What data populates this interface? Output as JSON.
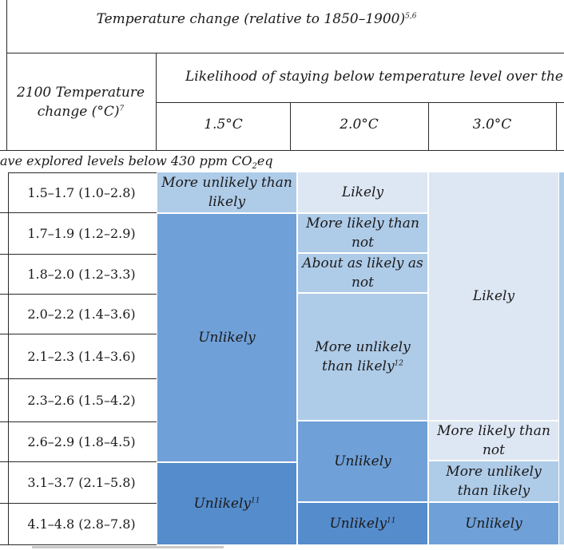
{
  "header": {
    "title": "Temperature change (relative to 1850–1900)",
    "title_sup": "5,6",
    "col2100": "2100 Temperature change (°C)",
    "col2100_sup": "7",
    "likelihood": "Likelihood of staying below temperature level over the",
    "levels": [
      "1.5°C",
      "2.0°C",
      "3.0°C"
    ]
  },
  "section_note": "ave explored levels below 430 ppm CO",
  "section_note_sub": "2",
  "section_note_tail": "eq",
  "rows": [
    "1.5–1.7 (1.0–2.8)",
    "1.7–1.9 (1.2–2.9)",
    "1.8–2.0 (1.2–3.3)",
    "2.0–2.2 (1.4–3.6)",
    "2.1–2.3 (1.4–3.6)",
    "2.3–2.6 (1.5–4.2)",
    "2.6–2.9 (1.8–4.5)",
    "3.1–3.7 (2.1–5.8)",
    "4.1–4.8 (2.8–7.8)"
  ],
  "col15": {
    "a": "More unlikely than likely",
    "b": "Unlikely",
    "c": "Unlikely",
    "c_sup": "11"
  },
  "col20": {
    "a": "Likely",
    "b": "More likely than not",
    "c": "About as likely as not",
    "d": "More unlikely than likely",
    "d_sup": "12",
    "e": "Unlikely",
    "f": "Unlikely",
    "f_sup": "11"
  },
  "col30": {
    "a": "Likely",
    "b": "More likely than not",
    "c": "More unlikely than likely",
    "d": "Unlikely"
  },
  "colors": {
    "light": "#dde7f3",
    "pale_blue": "#aecbe8",
    "mid_blue": "#6fa0d8",
    "dark_blue": "#558ccc"
  }
}
